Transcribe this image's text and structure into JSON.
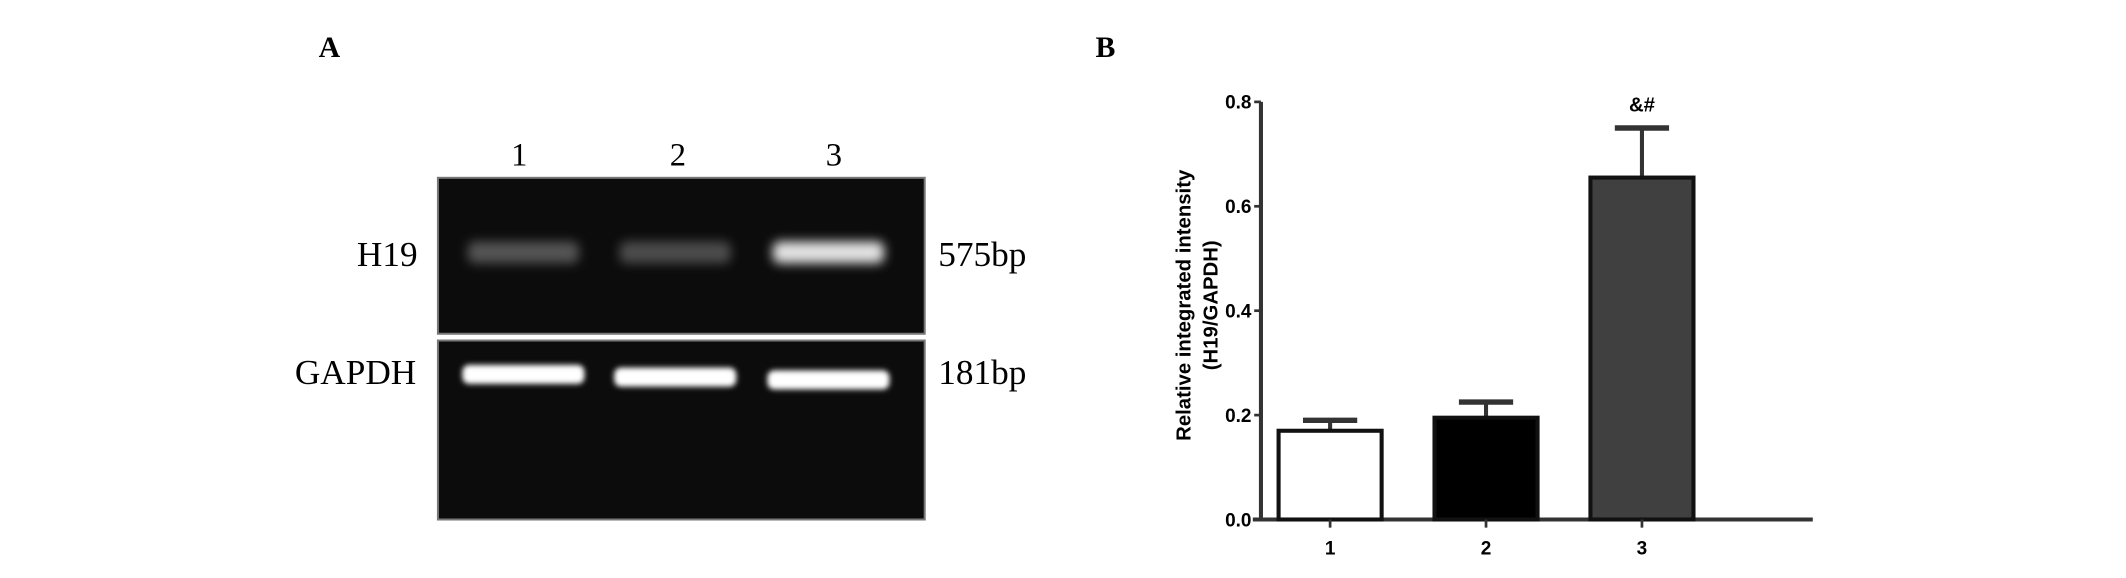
{
  "panel_a": {
    "label": "A",
    "lane_labels": [
      "1",
      "2",
      "3"
    ],
    "rows": [
      {
        "name": "H19",
        "size": "575bp",
        "band_intensity": [
          0.35,
          0.3,
          0.95
        ]
      },
      {
        "name": "GAPDH",
        "size": "181bp",
        "band_intensity": [
          1,
          1,
          1
        ]
      }
    ]
  },
  "chart_data": {
    "panel_label": "B",
    "type": "bar",
    "categories": [
      "1",
      "2",
      "3"
    ],
    "values": [
      0.17,
      0.195,
      0.655
    ],
    "errors_upper": [
      0.19,
      0.225,
      0.75
    ],
    "bar_colors": [
      "#ffffff",
      "#000000",
      "#404040"
    ],
    "annotations": [
      "",
      "",
      "&#"
    ],
    "ylabel_line1": "Relative integrated intensity",
    "ylabel_line2": "(H19/GAPDH)",
    "xlabel": "",
    "ylim": [
      0,
      0.8
    ],
    "yticks": [
      "0.0",
      "0.2",
      "0.4",
      "0.6",
      "0.8"
    ],
    "grid": false
  }
}
